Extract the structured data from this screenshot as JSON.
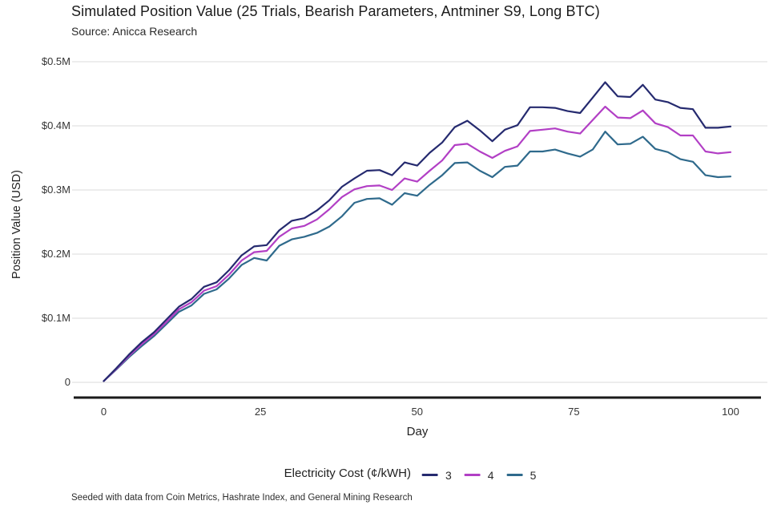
{
  "chart_data": {
    "type": "line",
    "title": "Simulated Position Value (25 Trials, Bearish Parameters, Antminer S9, Long BTC)",
    "subtitle": "Source: Anicca Research",
    "xlabel": "Day",
    "ylabel": "Position Value (USD)",
    "footnote": "Seeded with data from Coin Metrics, Hashrate Index, and General Mining Research",
    "legend_title": "Electricity Cost (¢/kWH)",
    "legend_position": "bottom",
    "grid": true,
    "xlim": [
      0,
      100
    ],
    "ylim_musd": [
      0,
      0.5
    ],
    "x_ticks": [
      {
        "value": 0,
        "label": "0"
      },
      {
        "value": 25,
        "label": "25"
      },
      {
        "value": 50,
        "label": "50"
      },
      {
        "value": 75,
        "label": "75"
      },
      {
        "value": 100,
        "label": "100"
      }
    ],
    "y_ticks": [
      {
        "value_musd": 0.5,
        "label": "$0.5M"
      },
      {
        "value_musd": 0.4,
        "label": "$0.4M"
      },
      {
        "value_musd": 0.3,
        "label": "$0.3M"
      },
      {
        "value_musd": 0.2,
        "label": "$0.2M"
      },
      {
        "value_musd": 0.1,
        "label": "$0.1M"
      },
      {
        "value_musd": 0.0,
        "label": "0"
      }
    ],
    "x_days": [
      0,
      2,
      4,
      6,
      8,
      10,
      12,
      14,
      16,
      18,
      20,
      22,
      24,
      26,
      28,
      30,
      32,
      34,
      36,
      38,
      40,
      42,
      44,
      46,
      48,
      50,
      52,
      54,
      56,
      58,
      60,
      62,
      64,
      66,
      68,
      70,
      72,
      74,
      76,
      78,
      80,
      82,
      84,
      86,
      88,
      90,
      92,
      94,
      96,
      98,
      100
    ],
    "series": [
      {
        "name": "3",
        "color": "#252a6f",
        "values_musd": [
          0.002,
          0.022,
          0.043,
          0.062,
          0.078,
          0.098,
          0.118,
          0.13,
          0.149,
          0.156,
          0.175,
          0.198,
          0.212,
          0.214,
          0.237,
          0.252,
          0.256,
          0.268,
          0.284,
          0.305,
          0.318,
          0.33,
          0.331,
          0.323,
          0.343,
          0.338,
          0.358,
          0.374,
          0.398,
          0.408,
          0.393,
          0.376,
          0.394,
          0.401,
          0.429,
          0.429,
          0.428,
          0.423,
          0.42,
          0.444,
          0.468,
          0.446,
          0.445,
          0.464,
          0.441,
          0.437,
          0.428,
          0.426,
          0.397,
          0.397,
          0.399
        ]
      },
      {
        "name": "4",
        "color": "#b23fc5",
        "values_musd": [
          0.002,
          0.021,
          0.041,
          0.059,
          0.075,
          0.094,
          0.114,
          0.125,
          0.143,
          0.15,
          0.168,
          0.19,
          0.203,
          0.205,
          0.227,
          0.24,
          0.244,
          0.254,
          0.27,
          0.289,
          0.301,
          0.306,
          0.307,
          0.3,
          0.318,
          0.313,
          0.33,
          0.346,
          0.37,
          0.372,
          0.36,
          0.35,
          0.361,
          0.368,
          0.392,
          0.394,
          0.396,
          0.391,
          0.388,
          0.409,
          0.43,
          0.413,
          0.412,
          0.424,
          0.404,
          0.398,
          0.385,
          0.385,
          0.36,
          0.357,
          0.359
        ]
      },
      {
        "name": "5",
        "color": "#2f6a8c",
        "values_musd": [
          0.002,
          0.02,
          0.039,
          0.056,
          0.072,
          0.091,
          0.11,
          0.12,
          0.138,
          0.145,
          0.162,
          0.183,
          0.194,
          0.19,
          0.213,
          0.223,
          0.227,
          0.233,
          0.243,
          0.259,
          0.28,
          0.286,
          0.287,
          0.277,
          0.295,
          0.291,
          0.308,
          0.323,
          0.342,
          0.343,
          0.33,
          0.32,
          0.336,
          0.338,
          0.36,
          0.36,
          0.363,
          0.357,
          0.352,
          0.363,
          0.391,
          0.371,
          0.372,
          0.383,
          0.364,
          0.359,
          0.348,
          0.344,
          0.323,
          0.32,
          0.321
        ]
      }
    ]
  }
}
